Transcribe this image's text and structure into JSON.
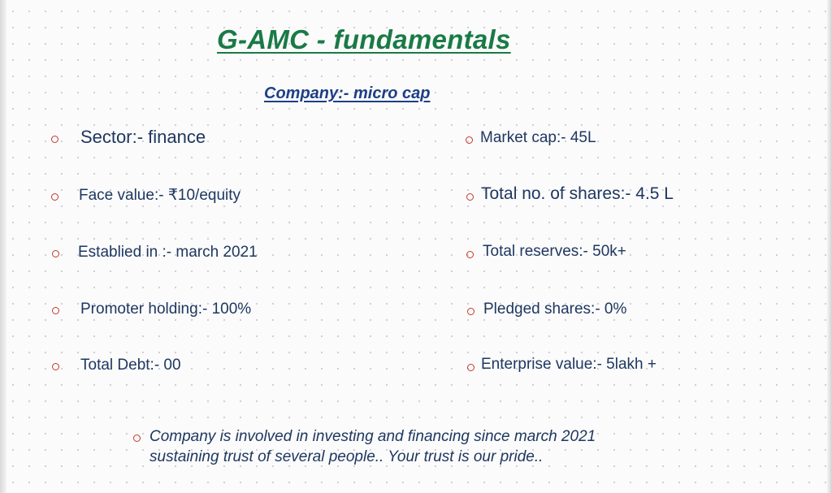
{
  "title": "G-AMC - fundamentals",
  "subtitle": "Company:- micro cap",
  "left_items": [
    "Sector:- finance",
    "Face value:- ₹10/equity",
    "Establied in :- march 2021",
    "Promoter holding:- 100%",
    "Total Debt:- 00"
  ],
  "right_items": [
    "Market cap:- 45L",
    "Total no. of shares:- 4.5 L",
    "Total reserves:- 50k+",
    "Pledged shares:- 0%",
    "Enterprise value:- 5lakh +"
  ],
  "footer": {
    "line1": "Company is involved in investing and financing since march 2021",
    "line2": "sustaining trust of several people.. Your trust is our pride.."
  },
  "colors": {
    "title": "#1a7a46",
    "subtitle": "#1c3f86",
    "text": "#1e3760",
    "bullet": "#c0392b"
  }
}
